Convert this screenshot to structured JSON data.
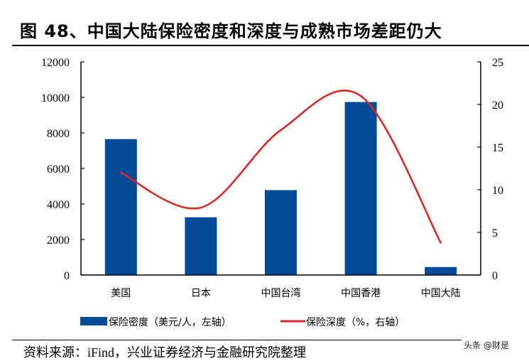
{
  "title": "图 48、中国大陆保险密度和深度与成熟市场差距仍大",
  "source": "资料来源：iFind，兴业证券经济与金融研究院整理",
  "watermark": "头条 @财是",
  "colors": {
    "bar": "#004A96",
    "line": "#D42A2A",
    "axis": "#000000"
  },
  "chart_data": {
    "type": "bar+line",
    "title": "中国大陆保险密度和深度与成熟市场差距仍大",
    "categories": [
      "美国",
      "日本",
      "中国台湾",
      "中国香港",
      "中国大陆"
    ],
    "series": [
      {
        "name": "保险密度（美元/人，左轴）",
        "type": "bar",
        "axis": "left",
        "values": [
          7650,
          3250,
          4780,
          9740,
          450
        ]
      },
      {
        "name": "保险深度（%，右轴）",
        "type": "line",
        "axis": "right",
        "values": [
          12.0,
          7.9,
          17.0,
          21.0,
          3.8
        ]
      }
    ],
    "left_axis": {
      "ylim": [
        0,
        12000
      ],
      "ticks": [
        0,
        2000,
        4000,
        6000,
        8000,
        10000,
        12000
      ]
    },
    "right_axis": {
      "ylim": [
        0,
        25
      ],
      "ticks": [
        0,
        5,
        10,
        15,
        20,
        25
      ]
    },
    "legend": {
      "position": "bottom",
      "entries": [
        "保险密度（美元/人，左轴）",
        "保险深度（%，右轴）"
      ]
    },
    "grid": false,
    "xlabel": "",
    "ylabel": ""
  }
}
